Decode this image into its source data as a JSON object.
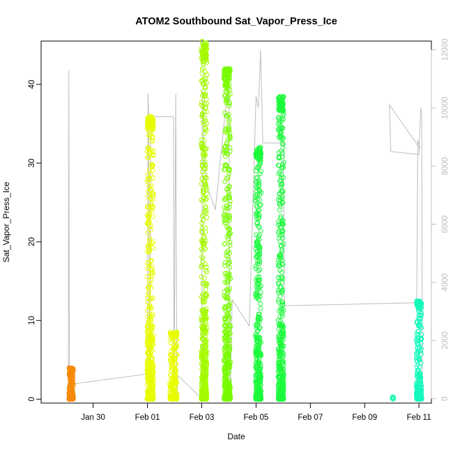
{
  "chart_data": {
    "type": "scatter",
    "title": "ATOM2 Southbound Sat_Vapor_Press_Ice",
    "xlabel": "Date",
    "ylabel": "Sat_Vapor_Press_Ice",
    "x_axis": {
      "type": "date",
      "range": [
        "2017-01-28T02:00",
        "2017-02-11T11:00"
      ],
      "ticks": [
        {
          "value": "2017-01-30",
          "label": "Jan 30"
        },
        {
          "value": "2017-02-01",
          "label": "Feb 01"
        },
        {
          "value": "2017-02-03",
          "label": "Feb 03"
        },
        {
          "value": "2017-02-05",
          "label": "Feb 05"
        },
        {
          "value": "2017-02-07",
          "label": "Feb 07"
        },
        {
          "value": "2017-02-09",
          "label": "Feb 09"
        },
        {
          "value": "2017-02-11",
          "label": "Feb 11"
        }
      ]
    },
    "y_axis_left": {
      "range": [
        -0.5,
        45.5
      ],
      "ticks": [
        0,
        10,
        20,
        30,
        40
      ],
      "color": "#000000"
    },
    "y_axis_right": {
      "range": [
        -150,
        12300
      ],
      "ticks": [
        0,
        2000,
        4000,
        6000,
        8000,
        10000,
        12000
      ],
      "color": "#bdbdbd",
      "line_color": "#bdbdbd"
    },
    "grid": false,
    "legend": "none",
    "series": [
      {
        "color": "#f58a06",
        "x_start": "2017-01-29T02:00",
        "x_end": "2017-01-29T07:00",
        "y_min": 0.0,
        "y_max": 4.0
      },
      {
        "color": "#e8fc00",
        "x_start": "2017-01-31T23:00",
        "x_end": "2017-02-01T06:00",
        "y_min": 0.0,
        "y_max": 36.0
      },
      {
        "color": "#e8fc00",
        "x_start": "2017-02-01T19:00",
        "x_end": "2017-02-02T03:00",
        "y_min": 0.0,
        "y_max": 8.5
      },
      {
        "color": "#a4fb00",
        "x_start": "2017-02-02T23:00",
        "x_end": "2017-02-03T05:00",
        "y_min": 0.0,
        "y_max": 45.5
      },
      {
        "color": "#78fb00",
        "x_start": "2017-02-03T19:00",
        "x_end": "2017-02-04T02:00",
        "y_min": 0.0,
        "y_max": 42.0
      },
      {
        "color": "#1bfa3c",
        "x_start": "2017-02-04T23:00",
        "x_end": "2017-02-05T05:00",
        "y_min": 0.0,
        "y_max": 32.0
      },
      {
        "color": "#1bfa3c",
        "x_start": "2017-02-05T19:00",
        "x_end": "2017-02-06T01:00",
        "y_min": 0.0,
        "y_max": 38.5
      },
      {
        "color": "#21fab4",
        "x_start": "2017-02-10T00:00",
        "x_end": "2017-02-10T02:00",
        "y_min": 0.0,
        "y_max": 0.3
      },
      {
        "color": "#14f9bc",
        "x_start": "2017-02-10T21:00",
        "x_end": "2017-02-11T03:00",
        "y_min": 0.0,
        "y_max": 12.5
      }
    ],
    "right_series": {
      "color": "#bdbdbd",
      "points": [
        [
          "2017-01-29T02:00",
          0
        ],
        [
          "2017-01-29T02:30",
          11300
        ],
        [
          "2017-01-29T03:00",
          0
        ],
        [
          "2017-01-29T04:00",
          500
        ],
        [
          "2017-02-01T00:00",
          850
        ],
        [
          "2017-02-01T00:30",
          10500
        ],
        [
          "2017-02-01T01:00",
          9800
        ],
        [
          "2017-02-01T02:00",
          0
        ],
        [
          "2017-02-01T03:00",
          9700
        ],
        [
          "2017-02-01T23:00",
          9700
        ],
        [
          "2017-02-01T23:30",
          0
        ],
        [
          "2017-02-02T01:00",
          10500
        ],
        [
          "2017-02-02T02:00",
          0
        ],
        [
          "2017-02-02T03:00",
          800
        ],
        [
          "2017-02-03T00:00",
          0
        ],
        [
          "2017-02-03T00:30",
          10600
        ],
        [
          "2017-02-03T02:00",
          8800
        ],
        [
          "2017-02-03T04:00",
          7400
        ],
        [
          "2017-02-03T12:00",
          6500
        ],
        [
          "2017-02-04T00:00",
          11100
        ],
        [
          "2017-02-04T01:00",
          0
        ],
        [
          "2017-02-04T03:00",
          3400
        ],
        [
          "2017-02-04T18:00",
          2500
        ],
        [
          "2017-02-05T00:00",
          10400
        ],
        [
          "2017-02-05T02:00",
          10000
        ],
        [
          "2017-02-05T04:00",
          12000
        ],
        [
          "2017-02-05T06:00",
          8800
        ],
        [
          "2017-02-06T00:00",
          8800
        ],
        [
          "2017-02-06T01:00",
          3200
        ],
        [
          "2017-02-10T22:00",
          3300
        ],
        [
          "2017-02-10T23:00",
          8900
        ],
        [
          "2017-02-11T01:00",
          8600
        ],
        [
          "2017-02-09T22:00",
          10100
        ],
        [
          "2017-02-09T23:00",
          8500
        ],
        [
          "2017-02-11T00:00",
          8400
        ],
        [
          "2017-02-11T01:30",
          10000
        ],
        [
          "2017-02-11T02:30",
          9800
        ],
        [
          "2017-02-11T03:00",
          0
        ]
      ]
    }
  }
}
